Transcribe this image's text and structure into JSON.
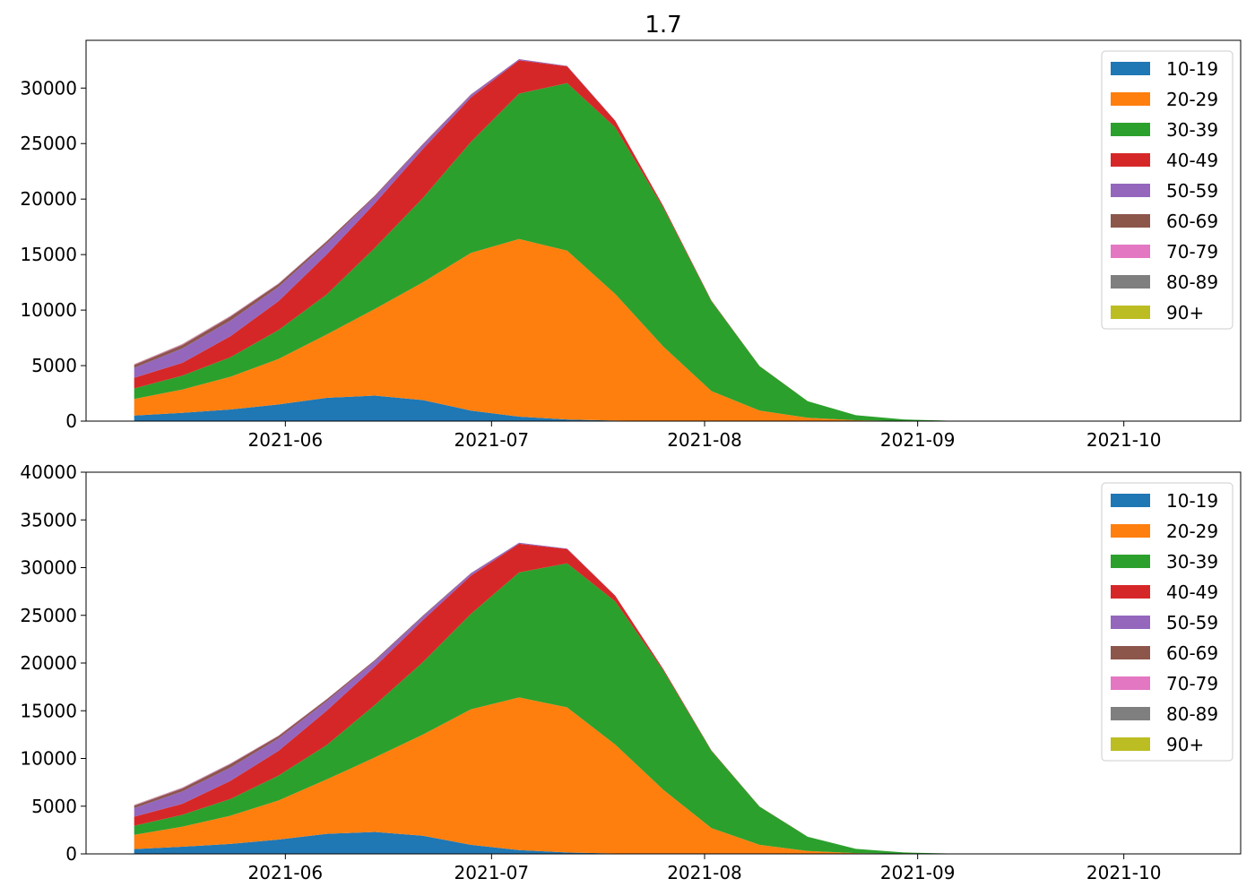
{
  "figure": {
    "title": "1.7"
  },
  "colors": {
    "10-19": "#1f77b4",
    "20-29": "#ff7f0e",
    "30-39": "#2ca02c",
    "40-49": "#d62728",
    "50-59": "#9467bd",
    "60-69": "#8c564b",
    "70-79": "#e377c2",
    "80-89": "#7f7f7f",
    "90+": "#bcbd22"
  },
  "chart_data": [
    {
      "type": "area",
      "stacked": true,
      "title": "1.7",
      "xlabel": "",
      "ylabel": "",
      "x": [
        "2021-05-10",
        "2021-05-17",
        "2021-05-24",
        "2021-05-31",
        "2021-06-07",
        "2021-06-14",
        "2021-06-21",
        "2021-06-28",
        "2021-07-05",
        "2021-07-12",
        "2021-07-19",
        "2021-07-26",
        "2021-08-02",
        "2021-08-09",
        "2021-08-16",
        "2021-08-23",
        "2021-08-30",
        "2021-09-06",
        "2021-09-13",
        "2021-09-20",
        "2021-09-27",
        "2021-10-04",
        "2021-10-11"
      ],
      "xlim": [
        "2021-05-03",
        "2021-10-18"
      ],
      "x_ticks": [
        "2021-06-01",
        "2021-07-01",
        "2021-08-01",
        "2021-09-01",
        "2021-10-01"
      ],
      "x_tick_labels": [
        "2021-06",
        "2021-07",
        "2021-08",
        "2021-09",
        "2021-10"
      ],
      "ylim": [
        0,
        34300
      ],
      "y_ticks": [
        0,
        5000,
        10000,
        15000,
        20000,
        25000,
        30000
      ],
      "grid": false,
      "legend_position": "top-right",
      "series": [
        {
          "name": "10-19",
          "values": [
            500,
            750,
            1050,
            1500,
            2100,
            2300,
            1900,
            950,
            400,
            150,
            50,
            10,
            0,
            0,
            0,
            0,
            0,
            0,
            0,
            0,
            0,
            0,
            0
          ]
        },
        {
          "name": "20-29",
          "values": [
            1500,
            2100,
            2950,
            4100,
            5700,
            7800,
            10600,
            14200,
            16000,
            15200,
            11400,
            6700,
            2700,
            950,
            300,
            80,
            20,
            0,
            0,
            0,
            0,
            0,
            0
          ]
        },
        {
          "name": "30-39",
          "values": [
            950,
            1250,
            1750,
            2600,
            3600,
            5500,
            7600,
            10000,
            13100,
            15100,
            15000,
            12500,
            8100,
            4000,
            1500,
            450,
            130,
            30,
            0,
            0,
            0,
            0,
            0
          ]
        },
        {
          "name": "40-49",
          "values": [
            950,
            1150,
            1900,
            2600,
            3600,
            4000,
            4400,
            4000,
            3000,
            1500,
            600,
            150,
            50,
            10,
            0,
            0,
            0,
            0,
            0,
            0,
            0,
            0,
            0
          ]
        },
        {
          "name": "50-59",
          "values": [
            900,
            1300,
            1400,
            1300,
            1000,
            600,
            400,
            250,
            100,
            40,
            20,
            5,
            0,
            0,
            0,
            0,
            0,
            0,
            0,
            0,
            0,
            0,
            0
          ]
        },
        {
          "name": "60-69",
          "values": [
            250,
            300,
            350,
            250,
            180,
            100,
            60,
            30,
            10,
            5,
            0,
            0,
            0,
            0,
            0,
            0,
            0,
            0,
            0,
            0,
            0,
            0,
            0
          ]
        },
        {
          "name": "70-79",
          "values": [
            60,
            70,
            60,
            40,
            30,
            15,
            10,
            5,
            0,
            0,
            0,
            0,
            0,
            0,
            0,
            0,
            0,
            0,
            0,
            0,
            0,
            0,
            0
          ]
        },
        {
          "name": "80-89",
          "values": [
            20,
            25,
            20,
            15,
            10,
            5,
            0,
            0,
            0,
            0,
            0,
            0,
            0,
            0,
            0,
            0,
            0,
            0,
            0,
            0,
            0,
            0,
            0
          ]
        },
        {
          "name": "90+",
          "values": [
            5,
            5,
            5,
            5,
            0,
            0,
            0,
            0,
            0,
            0,
            0,
            0,
            0,
            0,
            0,
            0,
            0,
            0,
            0,
            0,
            0,
            0,
            0
          ]
        }
      ]
    },
    {
      "type": "area",
      "stacked": true,
      "title": "",
      "xlabel": "",
      "ylabel": "",
      "x": [
        "2021-05-10",
        "2021-05-17",
        "2021-05-24",
        "2021-05-31",
        "2021-06-07",
        "2021-06-14",
        "2021-06-21",
        "2021-06-28",
        "2021-07-05",
        "2021-07-12",
        "2021-07-19",
        "2021-07-26",
        "2021-08-02",
        "2021-08-09",
        "2021-08-16",
        "2021-08-23",
        "2021-08-30",
        "2021-09-06",
        "2021-09-13",
        "2021-09-20",
        "2021-09-27",
        "2021-10-04",
        "2021-10-11"
      ],
      "xlim": [
        "2021-05-03",
        "2021-10-18"
      ],
      "x_ticks": [
        "2021-06-01",
        "2021-07-01",
        "2021-08-01",
        "2021-09-01",
        "2021-10-01"
      ],
      "x_tick_labels": [
        "2021-06",
        "2021-07",
        "2021-08",
        "2021-09",
        "2021-10"
      ],
      "ylim": [
        0,
        40000
      ],
      "y_ticks": [
        0,
        5000,
        10000,
        15000,
        20000,
        25000,
        30000,
        35000,
        40000
      ],
      "grid": false,
      "legend_position": "top-right",
      "series": [
        {
          "name": "10-19",
          "values": [
            500,
            750,
            1050,
            1500,
            2100,
            2300,
            1900,
            950,
            400,
            150,
            50,
            10,
            0,
            0,
            0,
            0,
            0,
            0,
            0,
            0,
            0,
            0,
            0
          ]
        },
        {
          "name": "20-29",
          "values": [
            1500,
            2100,
            2950,
            4100,
            5700,
            7800,
            10600,
            14200,
            16000,
            15200,
            11400,
            6700,
            2700,
            950,
            300,
            80,
            20,
            0,
            0,
            0,
            0,
            0,
            0
          ]
        },
        {
          "name": "30-39",
          "values": [
            950,
            1250,
            1750,
            2600,
            3600,
            5500,
            7600,
            10000,
            13100,
            15100,
            15000,
            12500,
            8100,
            4000,
            1500,
            450,
            130,
            30,
            0,
            0,
            0,
            0,
            0
          ]
        },
        {
          "name": "40-49",
          "values": [
            950,
            1150,
            1900,
            2600,
            3600,
            4000,
            4400,
            4000,
            3000,
            1500,
            600,
            150,
            50,
            10,
            0,
            0,
            0,
            0,
            0,
            0,
            0,
            0,
            0
          ]
        },
        {
          "name": "50-59",
          "values": [
            900,
            1300,
            1400,
            1300,
            1000,
            600,
            400,
            250,
            100,
            40,
            20,
            5,
            0,
            0,
            0,
            0,
            0,
            0,
            0,
            0,
            0,
            0,
            0
          ]
        },
        {
          "name": "60-69",
          "values": [
            250,
            300,
            350,
            250,
            180,
            100,
            60,
            30,
            10,
            5,
            0,
            0,
            0,
            0,
            0,
            0,
            0,
            0,
            0,
            0,
            0,
            0,
            0
          ]
        },
        {
          "name": "70-79",
          "values": [
            60,
            70,
            60,
            40,
            30,
            15,
            10,
            5,
            0,
            0,
            0,
            0,
            0,
            0,
            0,
            0,
            0,
            0,
            0,
            0,
            0,
            0,
            0
          ]
        },
        {
          "name": "80-89",
          "values": [
            20,
            25,
            20,
            15,
            10,
            5,
            0,
            0,
            0,
            0,
            0,
            0,
            0,
            0,
            0,
            0,
            0,
            0,
            0,
            0,
            0,
            0,
            0
          ]
        },
        {
          "name": "90+",
          "values": [
            5,
            5,
            5,
            5,
            0,
            0,
            0,
            0,
            0,
            0,
            0,
            0,
            0,
            0,
            0,
            0,
            0,
            0,
            0,
            0,
            0,
            0,
            0
          ]
        }
      ]
    }
  ]
}
